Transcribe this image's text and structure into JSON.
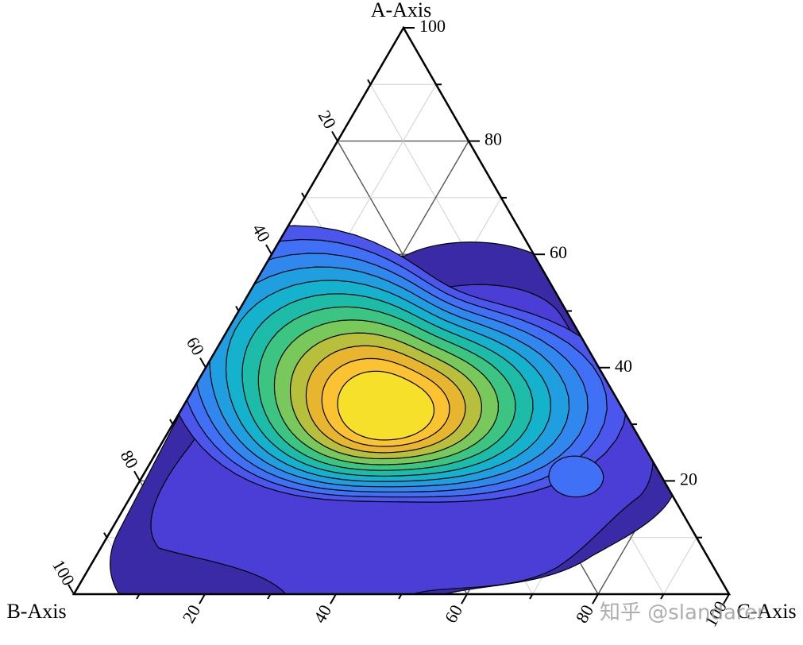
{
  "chart_data": {
    "type": "ternary",
    "axes": [
      {
        "title": "A-Axis",
        "ticks": [
          20,
          40,
          60,
          80,
          100
        ]
      },
      {
        "title": "B-Axis",
        "ticks": [
          20,
          40,
          60,
          80,
          100
        ]
      },
      {
        "title": "C-Axis",
        "ticks": [
          20,
          40,
          60,
          80,
          100
        ]
      }
    ],
    "minorticks": [
      10,
      30,
      50,
      70,
      90
    ],
    "grid": true
  },
  "watermark": "知乎 @slandarer"
}
